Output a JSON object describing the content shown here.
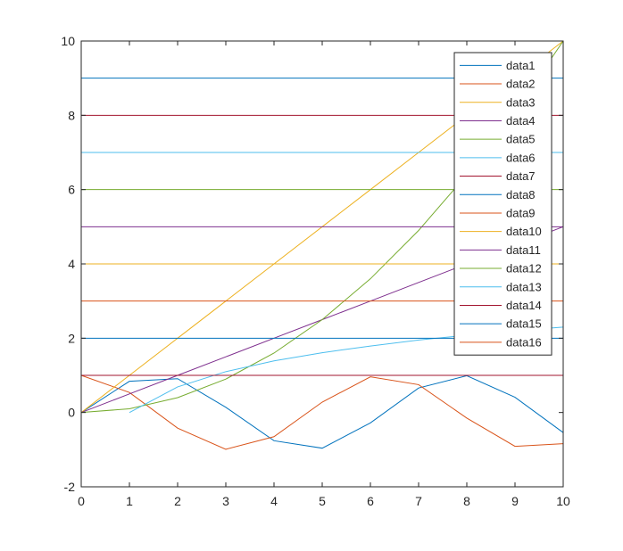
{
  "chart_data": {
    "type": "line",
    "title": "",
    "xlabel": "",
    "ylabel": "",
    "xlim": [
      0,
      10
    ],
    "ylim": [
      -2,
      10
    ],
    "xticks": [
      0,
      1,
      2,
      3,
      4,
      5,
      6,
      7,
      8,
      9,
      10
    ],
    "yticks": [
      -2,
      0,
      2,
      4,
      6,
      8,
      10
    ],
    "xtick_labels": [
      "0",
      "1",
      "2",
      "3",
      "4",
      "5",
      "6",
      "7",
      "8",
      "9",
      "10"
    ],
    "ytick_labels": [
      "-2",
      "0",
      "2",
      "4",
      "6",
      "8",
      "10"
    ],
    "grid": false,
    "legend_position": "top-right",
    "x": [
      0,
      1,
      2,
      3,
      4,
      5,
      6,
      7,
      8,
      9,
      10
    ],
    "series": [
      {
        "name": "data1",
        "color": "#0072BD",
        "values": [
          0,
          0.84,
          0.91,
          0.14,
          -0.76,
          -0.96,
          -0.28,
          0.66,
          0.99,
          0.41,
          -0.54
        ]
      },
      {
        "name": "data2",
        "color": "#D95319",
        "values": [
          1,
          0.54,
          -0.42,
          -0.99,
          -0.65,
          0.28,
          0.96,
          0.75,
          -0.15,
          -0.91,
          -0.84
        ]
      },
      {
        "name": "data3",
        "color": "#EDB120",
        "values": [
          0,
          1,
          2,
          3,
          4,
          5,
          6,
          7,
          8,
          9,
          10
        ]
      },
      {
        "name": "data4",
        "color": "#7E2F8E",
        "values": [
          0,
          0.5,
          1,
          1.5,
          2,
          2.5,
          3,
          3.5,
          4,
          4.5,
          5
        ]
      },
      {
        "name": "data5",
        "color": "#77AC30",
        "values": [
          0,
          0.1,
          0.4,
          0.9,
          1.6,
          2.5,
          3.6,
          4.9,
          6.4,
          8.1,
          10
        ]
      },
      {
        "name": "data6",
        "color": "#4DBEEE",
        "values": [
          null,
          0,
          0.69,
          1.1,
          1.39,
          1.61,
          1.79,
          1.95,
          2.08,
          2.2,
          2.3
        ]
      },
      {
        "name": "data7",
        "color": "#A2142F",
        "values": [
          1,
          1,
          1,
          1,
          1,
          1,
          1,
          1,
          1,
          1,
          1
        ]
      },
      {
        "name": "data8",
        "color": "#0072BD",
        "values": [
          2,
          2,
          2,
          2,
          2,
          2,
          2,
          2,
          2,
          2,
          2
        ]
      },
      {
        "name": "data9",
        "color": "#D95319",
        "values": [
          3,
          3,
          3,
          3,
          3,
          3,
          3,
          3,
          3,
          3,
          3
        ]
      },
      {
        "name": "data10",
        "color": "#EDB120",
        "values": [
          4,
          4,
          4,
          4,
          4,
          4,
          4,
          4,
          4,
          4,
          4
        ]
      },
      {
        "name": "data11",
        "color": "#7E2F8E",
        "values": [
          5,
          5,
          5,
          5,
          5,
          5,
          5,
          5,
          5,
          5,
          5
        ]
      },
      {
        "name": "data12",
        "color": "#77AC30",
        "values": [
          6,
          6,
          6,
          6,
          6,
          6,
          6,
          6,
          6,
          6,
          6
        ]
      },
      {
        "name": "data13",
        "color": "#4DBEEE",
        "values": [
          7,
          7,
          7,
          7,
          7,
          7,
          7,
          7,
          7,
          7,
          7
        ]
      },
      {
        "name": "data14",
        "color": "#A2142F",
        "values": [
          8,
          8,
          8,
          8,
          8,
          8,
          8,
          8,
          8,
          8,
          8
        ]
      },
      {
        "name": "data15",
        "color": "#0072BD",
        "values": [
          9,
          9,
          9,
          9,
          9,
          9,
          9,
          9,
          9,
          9,
          9
        ]
      },
      {
        "name": "data16",
        "color": "#D95319",
        "values": [
          10,
          10,
          10,
          10,
          10,
          10,
          10,
          10,
          10,
          10,
          10
        ]
      }
    ]
  }
}
